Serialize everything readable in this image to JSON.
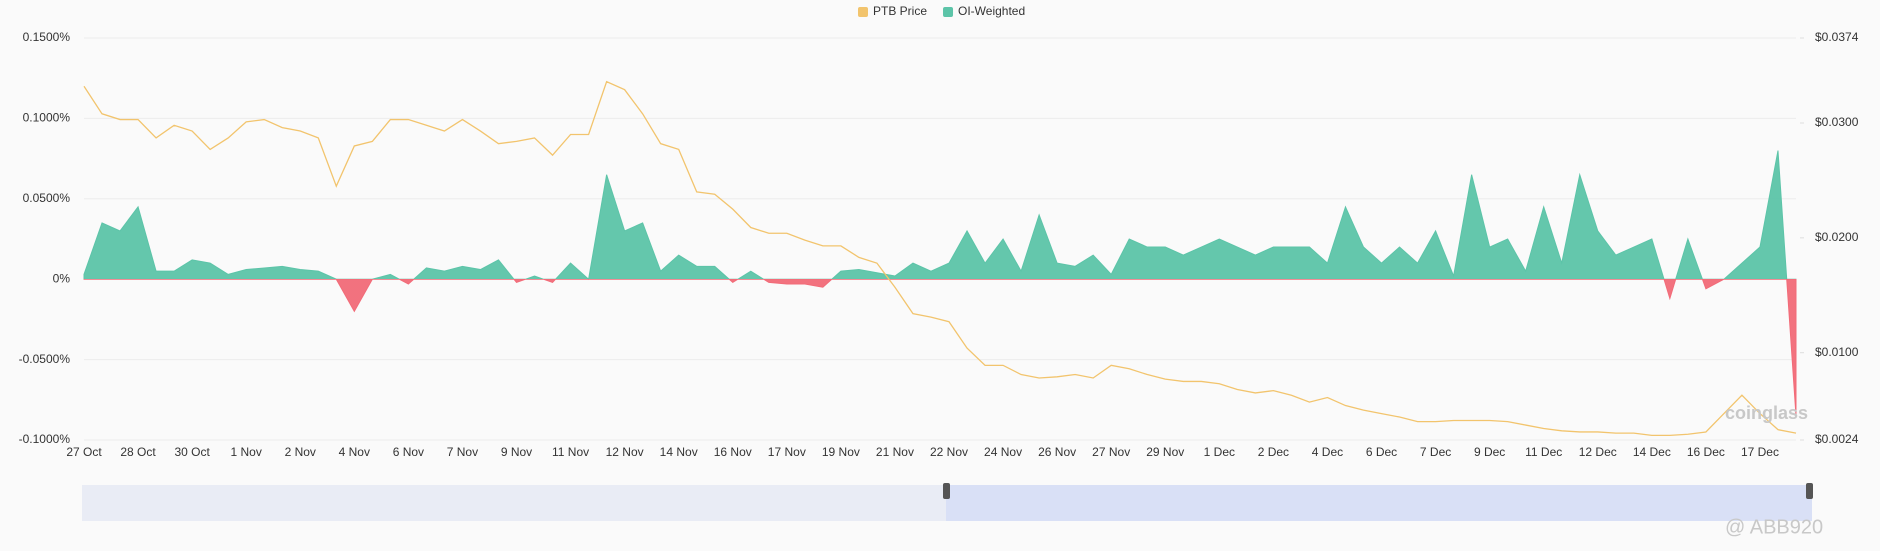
{
  "chart_data": {
    "type": "area",
    "categories": [
      "27 Oct",
      null,
      null,
      "28 Oct",
      null,
      null,
      "30 Oct",
      null,
      null,
      "1 Nov",
      null,
      null,
      "2 Nov",
      null,
      null,
      "4 Nov",
      null,
      null,
      "6 Nov",
      null,
      null,
      "7 Nov",
      null,
      null,
      "9 Nov",
      null,
      null,
      "11 Nov",
      null,
      null,
      "12 Nov",
      null,
      null,
      "14 Nov",
      null,
      null,
      "16 Nov",
      null,
      null,
      "17 Nov",
      null,
      null,
      "19 Nov",
      null,
      null,
      "21 Nov",
      null,
      null,
      "22 Nov",
      null,
      null,
      "24 Nov",
      null,
      null,
      "26 Nov",
      null,
      null,
      "27 Nov",
      null,
      null,
      "29 Nov",
      null,
      null,
      "1 Dec",
      null,
      null,
      "2 Dec",
      null,
      null,
      "4 Dec",
      null,
      null,
      "6 Dec",
      null,
      null,
      "7 Dec",
      null,
      null,
      "9 Dec",
      null,
      null,
      "11 Dec",
      null,
      null,
      "12 Dec",
      null,
      null,
      "14 Dec",
      null,
      null,
      "16 Dec",
      null,
      null,
      "17 Dec",
      null,
      null
    ],
    "series": [
      {
        "name": "PTB Price",
        "color": "#f2c46d",
        "type": "line",
        "axis": "y2",
        "values": [
          0.0332,
          0.0308,
          0.0303,
          0.0303,
          0.0287,
          0.0298,
          0.0293,
          0.0277,
          0.0287,
          0.0301,
          0.0303,
          0.0296,
          0.0293,
          0.0287,
          0.0245,
          0.028,
          0.0284,
          0.0303,
          0.0303,
          0.0298,
          0.0293,
          0.0303,
          0.0293,
          0.0282,
          0.0284,
          0.0287,
          0.0272,
          0.029,
          0.029,
          0.0336,
          0.0329,
          0.0308,
          0.0282,
          0.0277,
          0.024,
          0.0238,
          0.0225,
          0.0209,
          0.0204,
          0.0204,
          0.0198,
          0.0193,
          0.0193,
          0.0183,
          0.0178,
          0.0157,
          0.0134,
          0.0131,
          0.0127,
          0.0104,
          0.0089,
          0.0089,
          0.0081,
          0.0078,
          0.0079,
          0.0081,
          0.0078,
          0.0089,
          0.0086,
          0.0081,
          0.0077,
          0.0075,
          0.0075,
          0.0073,
          0.0068,
          0.0065,
          0.0067,
          0.0063,
          0.0057,
          0.0061,
          0.0054,
          0.005,
          0.0047,
          0.0044,
          0.004,
          0.004,
          0.0041,
          0.0041,
          0.0041,
          0.004,
          0.0037,
          0.0034,
          0.0032,
          0.0031,
          0.0031,
          0.003,
          0.003,
          0.0028,
          0.0028,
          0.0029,
          0.0031,
          0.0047,
          0.0063,
          0.0047,
          0.0033,
          0.003
        ]
      },
      {
        "name": "OI-Weighted",
        "color": "#5cc4a8",
        "negative_color": "#f26b78",
        "type": "area",
        "values": [
          0.003,
          0.035,
          0.03,
          0.045,
          0.005,
          0.005,
          0.012,
          0.01,
          0.003,
          0.006,
          0.007,
          0.008,
          0.006,
          0.005,
          0.0,
          -0.02,
          0.0,
          0.003,
          -0.003,
          0.007,
          0.005,
          0.008,
          0.006,
          0.012,
          -0.002,
          0.002,
          -0.002,
          0.01,
          0.0,
          0.065,
          0.03,
          0.035,
          0.005,
          0.015,
          0.008,
          0.008,
          -0.002,
          0.005,
          -0.002,
          -0.003,
          -0.003,
          -0.005,
          0.005,
          0.006,
          0.004,
          0.002,
          0.01,
          0.005,
          0.01,
          0.03,
          0.01,
          0.025,
          0.005,
          0.04,
          0.01,
          0.008,
          0.015,
          0.003,
          0.025,
          0.02,
          0.02,
          0.015,
          0.02,
          0.025,
          0.02,
          0.015,
          0.02,
          0.02,
          0.02,
          0.01,
          0.045,
          0.02,
          0.01,
          0.02,
          0.01,
          0.03,
          0.002,
          0.065,
          0.02,
          0.025,
          0.005,
          0.045,
          0.01,
          0.065,
          0.03,
          0.015,
          0.02,
          0.025,
          -0.012,
          0.025,
          -0.006,
          0.0,
          0.01,
          0.02,
          0.08,
          -0.085
        ]
      }
    ],
    "ylim": [
      -0.1,
      0.15
    ],
    "yticks": [
      {
        "value": -0.1,
        "label": "-0.1000%"
      },
      {
        "value": -0.05,
        "label": "-0.0500%"
      },
      {
        "value": 0,
        "label": "0%"
      },
      {
        "value": 0.05,
        "label": "0.0500%"
      },
      {
        "value": 0.1,
        "label": "0.1000%"
      },
      {
        "value": 0.15,
        "label": "0.1500%"
      }
    ],
    "y2lim": [
      0.0024,
      0.0374
    ],
    "y2ticks": [
      {
        "value": 0.0024,
        "label": "$0.0024"
      },
      {
        "value": 0.01,
        "label": "$0.0100"
      },
      {
        "value": 0.02,
        "label": "$0.0200"
      },
      {
        "value": 0.03,
        "label": "$0.0300"
      },
      {
        "value": 0.0374,
        "label": "$0.0374"
      }
    ],
    "grid": true,
    "legend": "top"
  },
  "watermarks": [
    "coinglass",
    "@ ABB920"
  ]
}
